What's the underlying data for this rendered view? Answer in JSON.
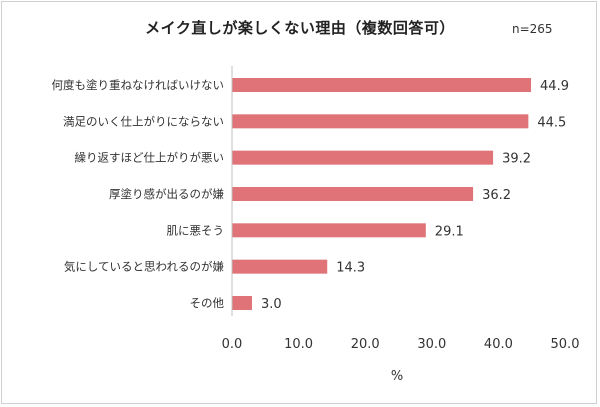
{
  "chart_data": {
    "type": "bar",
    "orientation": "horizontal",
    "title": "メイク直しが楽しくない理由（複数回答可）",
    "note": "n=265",
    "xlabel": "%",
    "ylabel": "",
    "xlim": [
      0,
      50
    ],
    "xticks": [
      "0.0",
      "10.0",
      "20.0",
      "30.0",
      "40.0",
      "50.0"
    ],
    "grid": false,
    "legend": "none",
    "bar_color": "#df7377",
    "categories": [
      "何度も塗り重ねなければいけない",
      "満足のいく仕上がりにならない",
      "繰り返すほど仕上がりが悪い",
      "厚塗り感が出るのが嫌",
      "肌に悪そう",
      "気にしていると思われるのが嫌",
      "その他"
    ],
    "values": [
      44.9,
      44.5,
      39.2,
      36.2,
      29.1,
      14.3,
      3.0
    ],
    "value_labels": [
      "44.9",
      "44.5",
      "39.2",
      "36.2",
      "29.1",
      "14.3",
      "3.0"
    ]
  }
}
